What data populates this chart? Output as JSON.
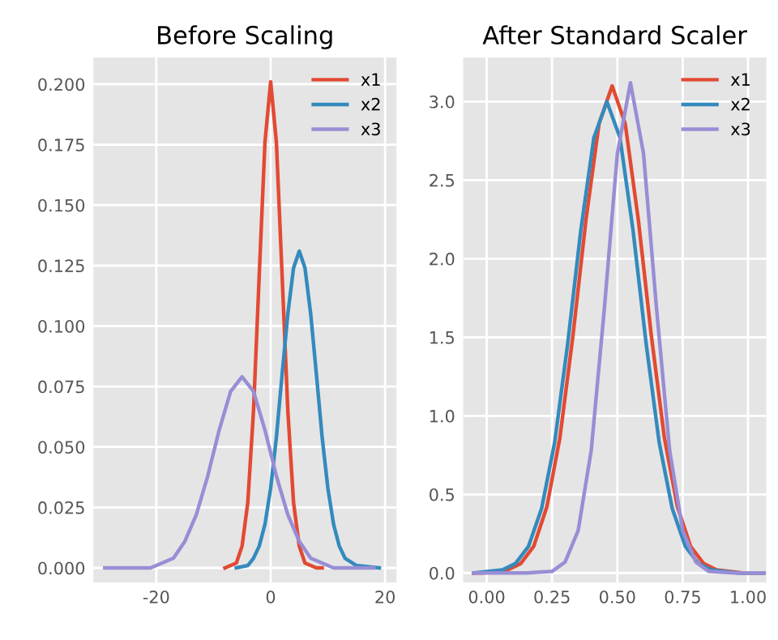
{
  "chart_data": [
    {
      "type": "line",
      "title": "Before Scaling",
      "legend": "top right",
      "grid": true,
      "xlim": [
        -31,
        22
      ],
      "xticks": [
        -20,
        0,
        20
      ],
      "ylim": [
        -0.006,
        0.211
      ],
      "yticks": [
        {
          "value": 0,
          "label": "0.000"
        },
        {
          "value": 0.025,
          "label": "0.025"
        },
        {
          "value": 0.05,
          "label": "0.050"
        },
        {
          "value": 0.075,
          "label": "0.075"
        },
        {
          "value": 0.1,
          "label": "0.100"
        },
        {
          "value": 0.125,
          "label": "0.125"
        },
        {
          "value": 0.15,
          "label": "0.150"
        },
        {
          "value": 0.175,
          "label": "0.175"
        },
        {
          "value": 0.2,
          "label": "0.200"
        }
      ],
      "series": [
        {
          "name": "x1",
          "color": "#e24a33",
          "x": [
            -8,
            -6,
            -5,
            -4,
            -3,
            -2,
            -1,
            0,
            1,
            2,
            3,
            4,
            5,
            6,
            8,
            9
          ],
          "values": [
            0,
            0.002,
            0.009,
            0.027,
            0.065,
            0.121,
            0.176,
            0.201,
            0.176,
            0.121,
            0.065,
            0.027,
            0.009,
            0.002,
            0,
            0
          ]
        },
        {
          "name": "x2",
          "color": "#348abd",
          "x": [
            -6,
            -4,
            -3,
            -2,
            -1,
            0,
            1,
            2,
            3,
            4,
            5,
            6,
            7,
            8,
            9,
            10,
            11,
            12,
            13,
            15,
            19
          ],
          "values": [
            0,
            0.001,
            0.004,
            0.009,
            0.018,
            0.033,
            0.054,
            0.08,
            0.105,
            0.124,
            0.131,
            0.124,
            0.105,
            0.08,
            0.054,
            0.033,
            0.018,
            0.009,
            0.004,
            0.001,
            0
          ]
        },
        {
          "name": "x3",
          "color": "#988ed5",
          "x": [
            -29,
            -21,
            -19,
            -17,
            -15,
            -13,
            -11,
            -9,
            -7,
            -5,
            -3,
            -1,
            1,
            3,
            5,
            7,
            9,
            11,
            13,
            18
          ],
          "values": [
            0,
            0,
            0.002,
            0.004,
            0.011,
            0.022,
            0.038,
            0.057,
            0.073,
            0.079,
            0.073,
            0.057,
            0.038,
            0.022,
            0.011,
            0.004,
            0.002,
            0,
            0,
            0
          ]
        }
      ]
    },
    {
      "type": "line",
      "title": "After Standard Scaler",
      "legend": "top right",
      "grid": true,
      "xlim": [
        -0.09,
        1.07
      ],
      "xticks": [
        {
          "value": 0,
          "label": "0.00"
        },
        0.25,
        {
          "value": 0.5,
          "label": "0.50"
        },
        0.75,
        {
          "value": 1,
          "label": "1.00"
        }
      ],
      "ylim": [
        -0.06,
        3.28
      ],
      "yticks": [
        {
          "value": 0,
          "label": "0.0"
        },
        0.5,
        {
          "value": 1,
          "label": "1.0"
        },
        1.5,
        {
          "value": 2,
          "label": "2.0"
        },
        2.5,
        {
          "value": 3,
          "label": "3.0"
        }
      ],
      "series": [
        {
          "name": "x1",
          "color": "#e24a33",
          "x": [
            -0.05,
            -0.02,
            0.08,
            0.13,
            0.18,
            0.23,
            0.28,
            0.33,
            0.38,
            0.43,
            0.48,
            0.53,
            0.58,
            0.63,
            0.68,
            0.73,
            0.78,
            0.83,
            0.88,
            0.98,
            1.06
          ],
          "values": [
            0,
            0,
            0.02,
            0.06,
            0.17,
            0.42,
            0.86,
            1.51,
            2.25,
            2.86,
            3.1,
            2.86,
            2.25,
            1.51,
            0.86,
            0.42,
            0.17,
            0.06,
            0.02,
            0,
            0
          ]
        },
        {
          "name": "x2",
          "color": "#348abd",
          "x": [
            -0.05,
            0.06,
            0.11,
            0.16,
            0.21,
            0.26,
            0.31,
            0.36,
            0.41,
            0.46,
            0.51,
            0.56,
            0.61,
            0.66,
            0.71,
            0.76,
            0.81,
            0.86,
            0.96,
            1.06
          ],
          "values": [
            0,
            0.02,
            0.06,
            0.17,
            0.41,
            0.83,
            1.46,
            2.18,
            2.77,
            3.0,
            2.77,
            2.18,
            1.46,
            0.83,
            0.41,
            0.17,
            0.06,
            0.02,
            0,
            0
          ]
        },
        {
          "name": "x3",
          "color": "#988ed5",
          "x": [
            -0.05,
            0.15,
            0.25,
            0.3,
            0.35,
            0.4,
            0.45,
            0.5,
            0.55,
            0.6,
            0.65,
            0.7,
            0.75,
            0.8,
            0.85,
            0.95,
            1.06
          ],
          "values": [
            0,
            0,
            0.01,
            0.07,
            0.27,
            0.78,
            1.68,
            2.67,
            3.12,
            2.67,
            1.68,
            0.78,
            0.27,
            0.07,
            0.01,
            0,
            0
          ]
        }
      ]
    }
  ]
}
